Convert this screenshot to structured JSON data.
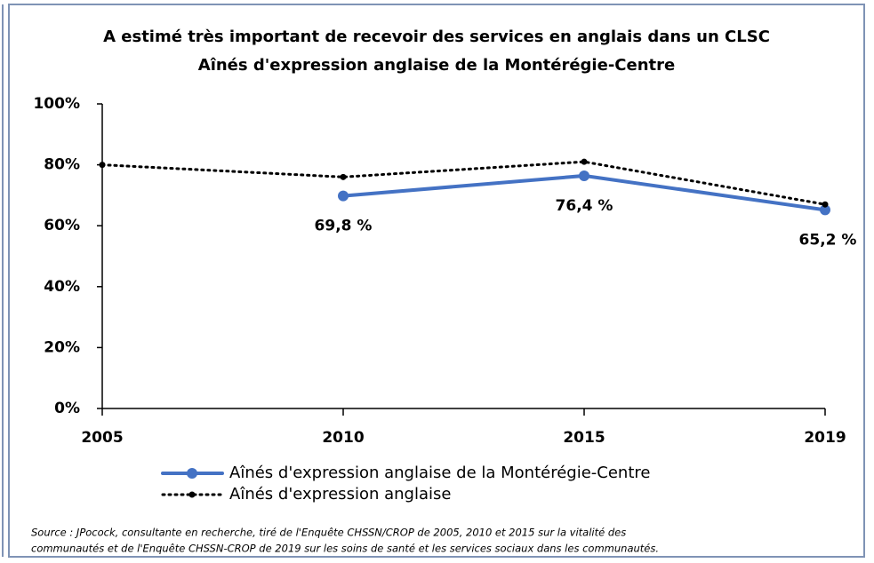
{
  "chart_data": {
    "type": "line",
    "title": "A estimé très important de recevoir des services en anglais  dans un CLSC",
    "subtitle": "Aînés d'expression anglaise de la Montérégie-Centre",
    "categories": [
      "2005",
      "2010",
      "2015",
      "2019"
    ],
    "series": [
      {
        "name": "Aînés d'expression anglaise de la Montérégie-Centre",
        "color": "#4472c4",
        "style": "solid",
        "values": [
          null,
          69.8,
          76.4,
          65.2
        ],
        "value_labels": [
          null,
          "69,8 %",
          "76,4 %",
          "65,2 %"
        ]
      },
      {
        "name": "Aînés d'expression anglaise",
        "color": "#000000",
        "style": "dotted",
        "values": [
          80,
          76,
          81,
          67
        ]
      }
    ],
    "ylim": [
      0,
      100
    ],
    "yticks": [
      {
        "value": 0,
        "label": "0%"
      },
      {
        "value": 20,
        "label": "20%"
      },
      {
        "value": 40,
        "label": "40%"
      },
      {
        "value": 60,
        "label": "60%"
      },
      {
        "value": 80,
        "label": "80%"
      },
      {
        "value": 100,
        "label": "100%"
      }
    ],
    "grid": false,
    "legend": "bottom",
    "source": [
      "Source : JPocock, consultante en recherche, tiré de l'Enquête CHSSN/CROP de 2005, 2010 et 2015 sur la vitalité des",
      "communautés et de l'Enquête CHSSN-CROP de 2019 sur les soins de santé et les services sociaux dans les communautés."
    ]
  }
}
